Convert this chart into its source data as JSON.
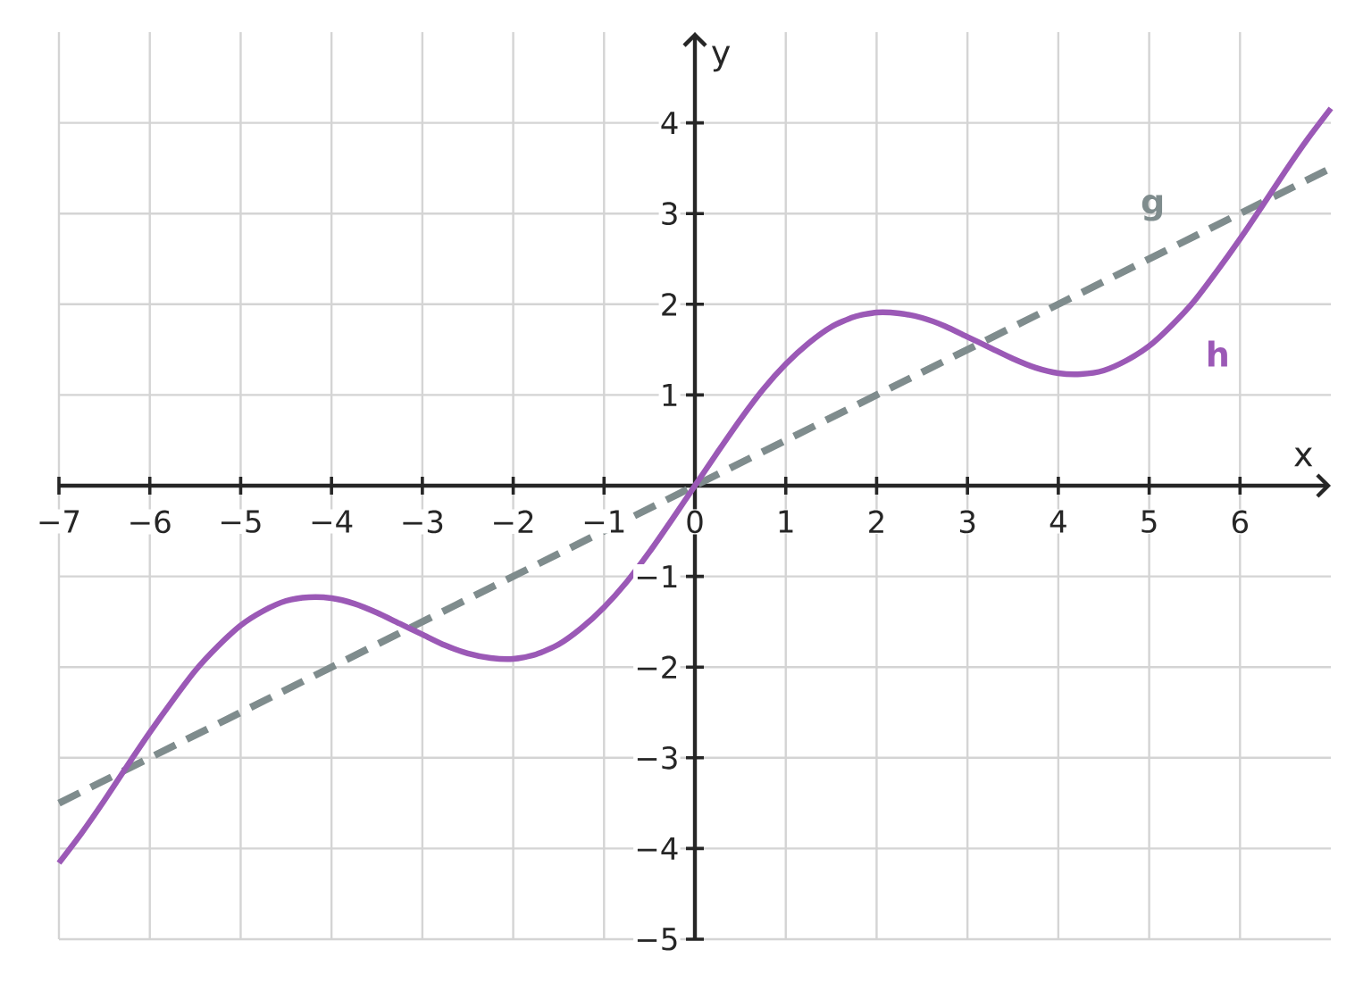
{
  "chart_data": {
    "type": "line",
    "xlabel": "x",
    "ylabel": "y",
    "xlim": [
      -7,
      7
    ],
    "ylim": [
      -5,
      5
    ],
    "xticks": [
      {
        "value": -7,
        "label": "−7"
      },
      {
        "value": -6,
        "label": "−6"
      },
      {
        "value": -5,
        "label": "−5"
      },
      {
        "value": -4,
        "label": "−4"
      },
      {
        "value": -3,
        "label": "−3"
      },
      {
        "value": -2,
        "label": "−2"
      },
      {
        "value": -1,
        "label": "−1"
      },
      0,
      1,
      2,
      3,
      4,
      5,
      6
    ],
    "yticks": [
      {
        "value": -5,
        "label": "−5"
      },
      {
        "value": -4,
        "label": "−4"
      },
      {
        "value": -3,
        "label": "−3"
      },
      {
        "value": -2,
        "label": "−2"
      },
      {
        "value": -1,
        "label": "−1"
      },
      1,
      2,
      3,
      4
    ],
    "grid": true,
    "series": [
      {
        "name": "g",
        "color": "#7f8c8d",
        "line_style": "dashed",
        "x": [
          -7,
          0,
          7
        ],
        "values": [
          -3.5,
          0,
          3.5
        ]
      },
      {
        "name": "h",
        "color": "#9b59b6",
        "line_style": "solid",
        "x": [
          -7,
          -6.75,
          -6.5,
          -6.25,
          -6,
          -5.75,
          -5.5,
          -5.25,
          -5,
          -4.75,
          -4.5,
          -4.25,
          -4,
          -3.75,
          -3.5,
          -3.25,
          -3,
          -2.75,
          -2.5,
          -2.25,
          -2,
          -1.75,
          -1.5,
          -1.25,
          -1,
          -0.75,
          -0.5,
          -0.25,
          0,
          0.25,
          0.5,
          0.75,
          1,
          1.25,
          1.5,
          1.75,
          2,
          2.25,
          2.5,
          2.75,
          3,
          3.25,
          3.5,
          3.75,
          4,
          4.25,
          4.5,
          4.75,
          5,
          5.25,
          5.5,
          5.75,
          6,
          6.25,
          6.5,
          6.75,
          7
        ],
        "values": [
          -4.16,
          -3.83,
          -3.47,
          -3.09,
          -2.72,
          -2.37,
          -2.04,
          -1.77,
          -1.54,
          -1.38,
          -1.27,
          -1.23,
          -1.24,
          -1.3,
          -1.4,
          -1.52,
          -1.64,
          -1.76,
          -1.85,
          -1.9,
          -1.91,
          -1.86,
          -1.75,
          -1.57,
          -1.34,
          -1.06,
          -0.73,
          -0.37,
          0,
          0.37,
          0.73,
          1.06,
          1.34,
          1.57,
          1.75,
          1.86,
          1.91,
          1.9,
          1.85,
          1.76,
          1.64,
          1.52,
          1.4,
          1.3,
          1.24,
          1.23,
          1.27,
          1.38,
          1.54,
          1.77,
          2.04,
          2.37,
          2.72,
          3.09,
          3.47,
          3.83,
          4.16
        ]
      }
    ]
  }
}
